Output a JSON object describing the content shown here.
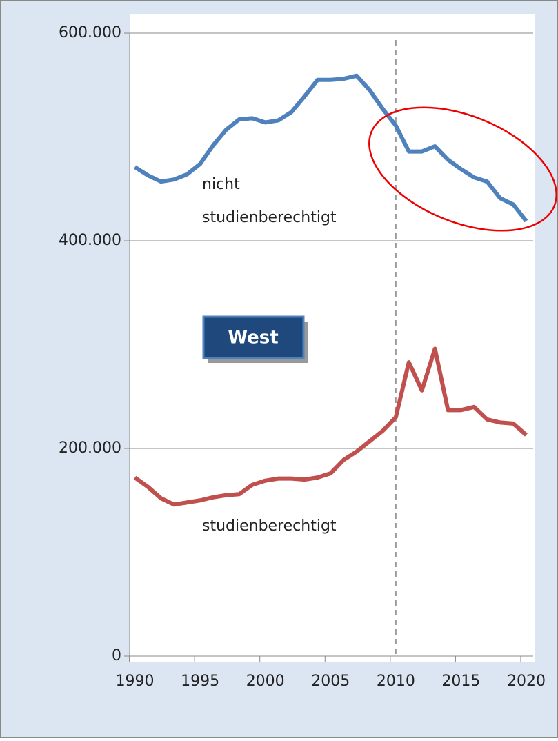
{
  "chart_data": {
    "type": "line",
    "x": [
      1990,
      1991,
      1992,
      1993,
      1994,
      1995,
      1996,
      1997,
      1998,
      1999,
      2000,
      2001,
      2002,
      2003,
      2004,
      2005,
      2006,
      2007,
      2008,
      2009,
      2010,
      2011,
      2012,
      2013,
      2014,
      2015,
      2016,
      2017,
      2018,
      2019,
      2020
    ],
    "series": [
      {
        "name": "nicht studienberechtigt",
        "color": "#4f81bd",
        "values": [
          471000,
          463000,
          457000,
          459000,
          464000,
          474000,
          492000,
          507000,
          517000,
          518000,
          514000,
          516000,
          524000,
          539000,
          555000,
          555000,
          556000,
          559000,
          545000,
          527000,
          511000,
          486000,
          486000,
          491000,
          478000,
          469000,
          461000,
          457000,
          441000,
          435000,
          419000
        ]
      },
      {
        "name": "studienberechtigt",
        "color": "#c0504d",
        "values": [
          172000,
          163000,
          152000,
          146000,
          148000,
          150000,
          153000,
          155000,
          156000,
          165000,
          169000,
          171000,
          171000,
          170000,
          172000,
          176000,
          189000,
          197000,
          207000,
          217000,
          230000,
          283000,
          256000,
          296000,
          237000,
          237000,
          240000,
          228000,
          225000,
          224000,
          213000
        ]
      }
    ],
    "annotations": {
      "series_label_1": [
        "nicht",
        "studienberechtigt"
      ],
      "series_label_2": "studienberechtigt",
      "region": "West",
      "marker_year": 2010
    },
    "xlim": [
      1989.6,
      2020.9
    ],
    "xticks": [
      1990,
      1995,
      2000,
      2005,
      2010,
      2015,
      2020
    ],
    "ylim": [
      0,
      600000
    ],
    "yticks": [
      0,
      {
        "value": 200000,
        "label": "200.000"
      },
      {
        "value": 400000,
        "label": "400.000"
      },
      {
        "value": 600000,
        "label": "600.000"
      }
    ],
    "grid": true
  }
}
